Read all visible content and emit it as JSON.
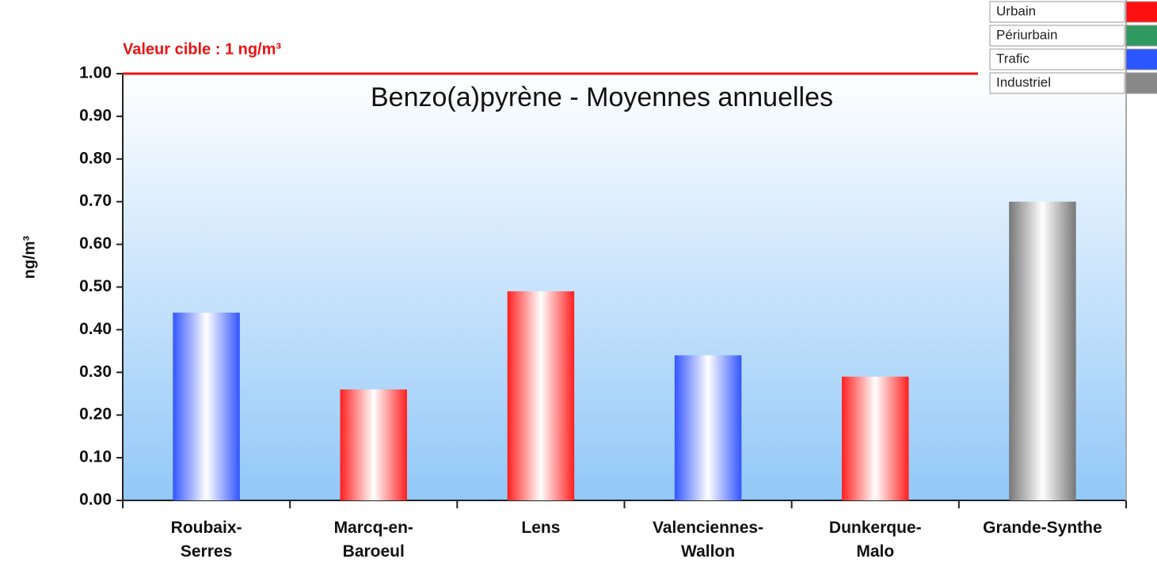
{
  "chart_data": {
    "type": "bar",
    "title": "Benzo(a)pyrène - Moyennes annuelles",
    "y_label": "ng/m³",
    "categories": [
      "Roubaix-\nSerres",
      "Marcq-en-\nBaroeul",
      "Lens",
      "Valenciennes-\nWallon",
      "Dunkerque-\nMalo",
      "Grande-Synthe"
    ],
    "values": [
      0.44,
      0.26,
      0.49,
      0.34,
      0.29,
      0.7
    ],
    "colors": [
      "#3355ff",
      "#ff2020",
      "#ff2020",
      "#3355ff",
      "#ff2020",
      "#777777"
    ],
    "ylim": [
      0,
      1
    ],
    "yticks": [
      {
        "value": 0,
        "label": "0.00"
      },
      {
        "value": 0.1,
        "label": "0.10"
      },
      {
        "value": 0.2,
        "label": "0.20"
      },
      {
        "value": 0.3,
        "label": "0.30"
      },
      {
        "value": 0.4,
        "label": "0.40"
      },
      {
        "value": 0.5,
        "label": "0.50"
      },
      {
        "value": 0.6,
        "label": "0.60"
      },
      {
        "value": 0.7,
        "label": "0.70"
      },
      {
        "value": 0.8,
        "label": "0.80"
      },
      {
        "value": 0.9,
        "label": "0.90"
      },
      {
        "value": 1,
        "label": "1.00"
      }
    ],
    "target": {
      "value": 1,
      "label": "Valeur cible : 1 ng/m³",
      "color": "#ee1111"
    },
    "legend": [
      {
        "name": "Urbain",
        "color": "#ff1010"
      },
      {
        "name": "Périurbain",
        "color": "#2e9960"
      },
      {
        "name": "Trafic",
        "color": "#2a55ff"
      },
      {
        "name": "Industriel",
        "color": "#888888"
      }
    ]
  }
}
